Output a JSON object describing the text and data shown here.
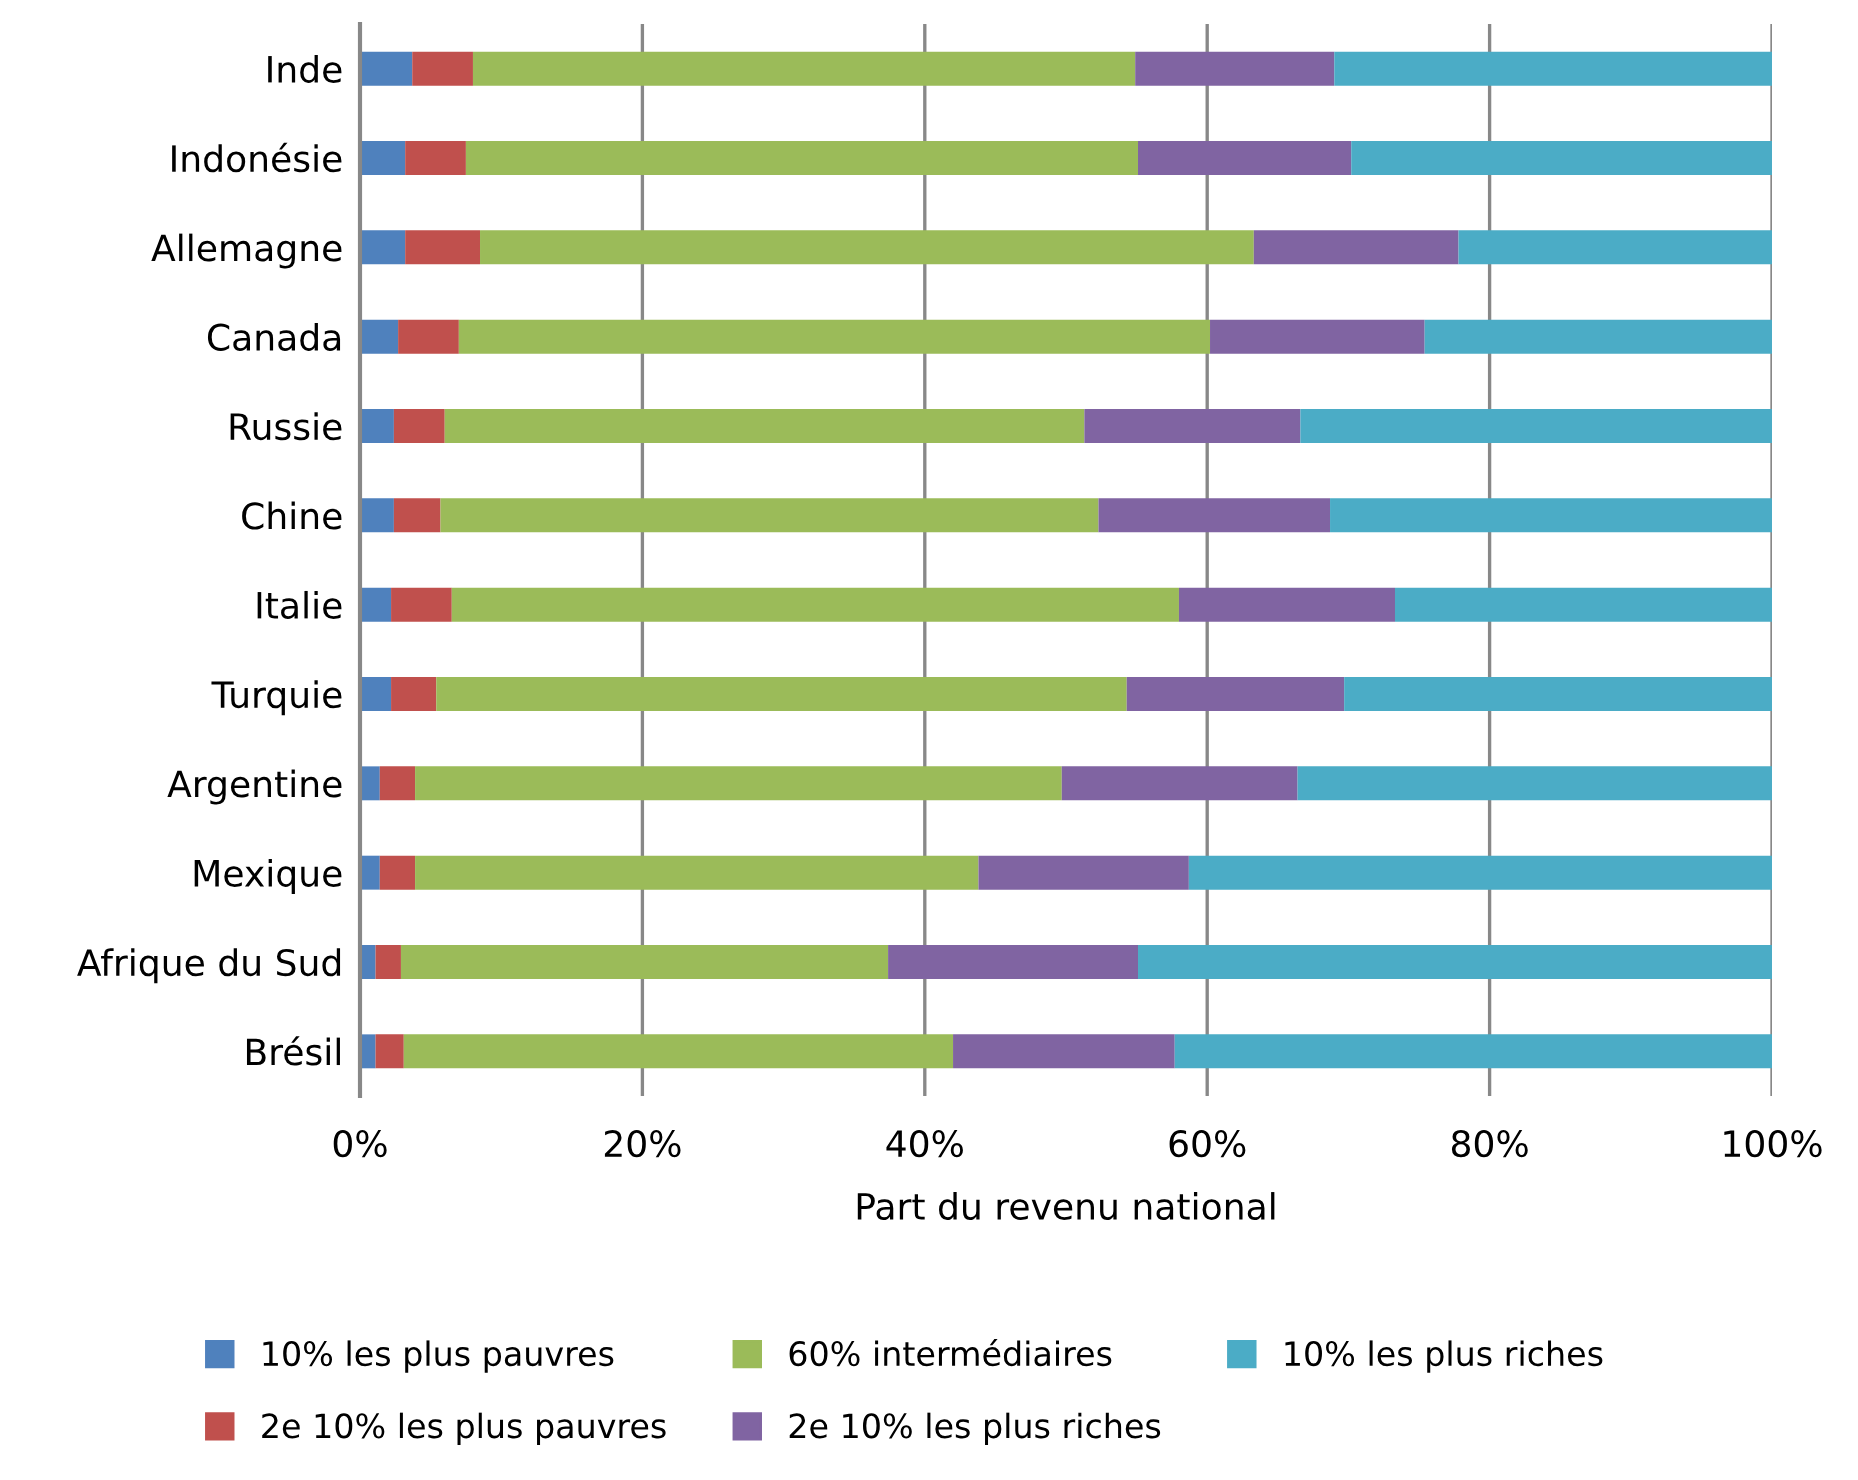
{
  "chart_data": {
    "type": "bar",
    "orientation": "horizontal",
    "stacked": true,
    "xlabel": "Part du revenu national",
    "categories": [
      "Inde",
      "Indonésie",
      "Allemagne",
      "Canada",
      "Russie",
      "Chine",
      "Italie",
      "Turquie",
      "Argentine",
      "Mexique",
      "Afrique du Sud",
      "Brésil"
    ],
    "series": [
      {
        "name": "10% les plus pauvres",
        "color": "#4f81bd",
        "values": [
          3.7,
          3.2,
          3.2,
          2.7,
          2.4,
          2.4,
          2.2,
          2.2,
          1.4,
          1.4,
          1.1,
          1.1
        ]
      },
      {
        "name": "2e 10% les plus pauvres",
        "color": "#c0504d",
        "values": [
          4.3,
          4.3,
          5.3,
          4.3,
          3.6,
          3.3,
          4.3,
          3.2,
          2.5,
          2.5,
          1.8,
          2.0
        ]
      },
      {
        "name": "60% intermédiaires",
        "color": "#9bbb59",
        "values": [
          46.9,
          47.6,
          54.8,
          53.2,
          45.3,
          46.6,
          51.5,
          48.9,
          45.8,
          39.9,
          34.5,
          38.9
        ]
      },
      {
        "name": "2e 10% les plus riches",
        "color": "#8064a2",
        "values": [
          14.1,
          15.1,
          14.5,
          15.2,
          15.3,
          16.4,
          15.3,
          15.4,
          16.7,
          14.9,
          17.7,
          15.7
        ]
      },
      {
        "name": "10% les plus riches",
        "color": "#4bacc6",
        "values": [
          31.0,
          29.8,
          22.2,
          24.6,
          33.4,
          31.3,
          26.7,
          30.3,
          33.6,
          41.3,
          44.9,
          42.3
        ]
      }
    ],
    "xlim": [
      0,
      100
    ],
    "xticks": [
      {
        "value": 0,
        "label": "0%"
      },
      {
        "value": 20,
        "label": "20%"
      },
      {
        "value": 40,
        "label": "40%"
      },
      {
        "value": 60,
        "label": "60%"
      },
      {
        "value": 80,
        "label": "80%"
      },
      {
        "value": 100,
        "label": "100%"
      }
    ],
    "grid": "x",
    "legend": "bottom"
  }
}
